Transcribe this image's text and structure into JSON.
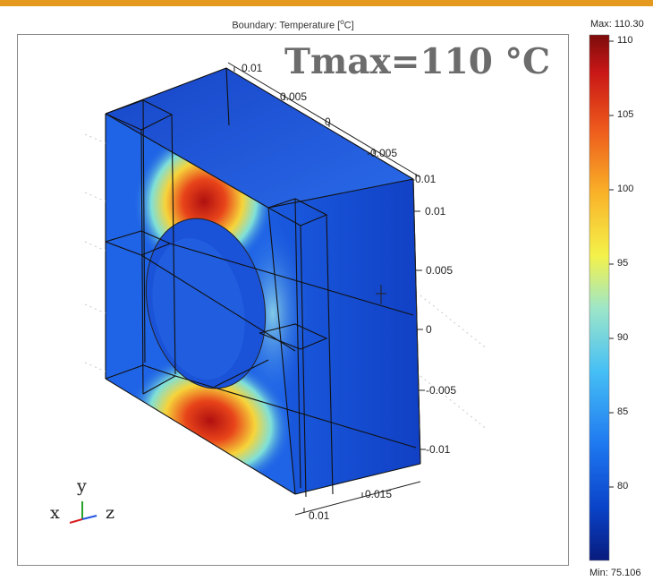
{
  "plot": {
    "title_prefix": "Boundary: Temperature [",
    "title_unit_sup": "o",
    "title_suffix": "C]",
    "overlay_text": "Tmax=110 °C"
  },
  "colorbar": {
    "max_label": "Max: 110.30",
    "min_label": "Min: 75.106",
    "min": 75.106,
    "max": 110.3,
    "ticks": [
      "110",
      "105",
      "100",
      "95",
      "90",
      "85",
      "80"
    ],
    "tick_values": [
      110,
      105,
      100,
      95,
      90,
      85,
      80
    ],
    "colors": [
      "#081b7e",
      "#0a43c8",
      "#1e78f0",
      "#46bff5",
      "#9ee6c8",
      "#f4f24a",
      "#f9b228",
      "#ee5a1c",
      "#c81616",
      "#7c0c0c"
    ]
  },
  "axes": {
    "top_x_ticks": [
      "0.01",
      "0.005",
      "0",
      "-0.005",
      "-0.01"
    ],
    "right_y_ticks": [
      "0.01",
      "0.005",
      "0",
      "-0.005",
      "-0.01"
    ],
    "bottom_z_ticks": [
      "0.015",
      "0.01"
    ]
  },
  "triad": {
    "x": "x",
    "y": "y",
    "z": "z"
  },
  "colors": {
    "background_field": "#1f64e6",
    "hot": "#c81616",
    "accent_bar": "#e39a1f"
  }
}
